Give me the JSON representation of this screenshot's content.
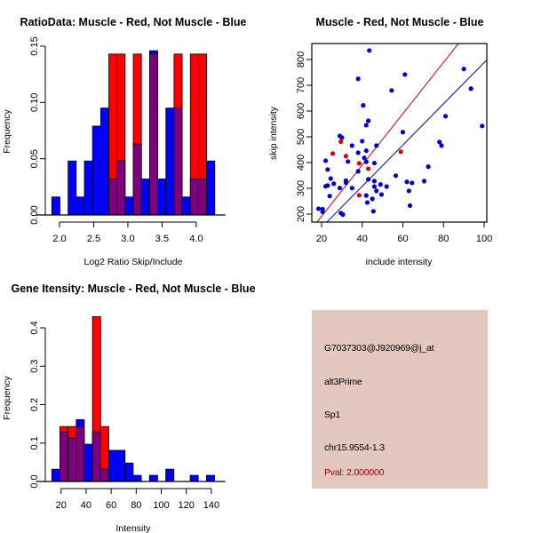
{
  "colors": {
    "red": "#ff0000",
    "blue": "#0000ff",
    "purple": "#7f007f",
    "scatter_blue": "#0000cc",
    "scatter_red": "#dd0000",
    "red_line": "#cc0000",
    "blue_line": "#000099",
    "panel_bg": "#e4c8c0",
    "pval": "#a00000"
  },
  "chart_data": [
    {
      "id": "ratio-hist",
      "type": "bar",
      "title": "RatioData: Muscle - Red, Not Muscle - Blue",
      "xlabel": "Log2 Ratio Skip/Include",
      "ylabel": "Frequency",
      "xlim": [
        1.887,
        4.27
      ],
      "ylim": [
        0,
        0.15
      ],
      "xticks": [
        "2.0",
        "2.5",
        "3.0",
        "3.5",
        "4.0"
      ],
      "xtick_values": [
        2.0,
        2.5,
        3.0,
        3.5,
        4.0
      ],
      "yticks": [
        "0.00",
        "0.05",
        "0.10",
        "0.15"
      ],
      "ytick_values": [
        0,
        0.05,
        0.1,
        0.15
      ],
      "bin_start": 1.887,
      "bin_width": 0.1192,
      "series": [
        {
          "name": "Not Muscle",
          "color": "blue",
          "values": [
            0.016,
            0,
            0.048,
            0.016,
            0.048,
            0.079,
            0.095,
            0.032,
            0.048,
            0.016,
            0.063,
            0.032,
            0.146,
            0.032,
            0.095,
            0.095,
            0.016,
            0.032,
            0.032,
            0.048
          ]
        },
        {
          "name": "Muscle",
          "color": "red",
          "values": [
            0,
            0,
            0,
            0,
            0,
            0,
            0,
            0.143,
            0.143,
            0,
            0.143,
            0,
            0.143,
            0,
            0,
            0.143,
            0,
            0.143,
            0.143,
            0
          ]
        }
      ],
      "overlap_color": "purple"
    },
    {
      "id": "intensity-scatter",
      "type": "scatter",
      "title": "Muscle - Red, Not Muscle - Blue",
      "xlabel": "include intensity",
      "ylabel": "skip intensity",
      "xlim": [
        15.2,
        101.3
      ],
      "ylim": [
        169,
        862
      ],
      "xticks": [
        "20",
        "40",
        "60",
        "80",
        "100"
      ],
      "xtick_values": [
        20,
        40,
        60,
        80,
        100
      ],
      "yticks": [
        "200",
        "300",
        "400",
        "500",
        "600",
        "700",
        "800"
      ],
      "ytick_values": [
        200,
        300,
        400,
        500,
        600,
        700,
        800
      ],
      "series": [
        {
          "name": "Not Muscle",
          "color": "scatter_blue",
          "points": [
            [
              43.5,
              835
            ],
            [
              38,
              725
            ],
            [
              61,
              742
            ],
            [
              54.5,
              680
            ],
            [
              40.5,
              622
            ],
            [
              90,
              763
            ],
            [
              93.5,
              687
            ],
            [
              81,
              580
            ],
            [
              99,
              542
            ],
            [
              43,
              562
            ],
            [
              42,
              545
            ],
            [
              60,
              518
            ],
            [
              29,
              503
            ],
            [
              30,
              497
            ],
            [
              40,
              483
            ],
            [
              78,
              480
            ],
            [
              79,
              466
            ],
            [
              35,
              466
            ],
            [
              47,
              466
            ],
            [
              42,
              446
            ],
            [
              38,
              438
            ],
            [
              41,
              418
            ],
            [
              22,
              407
            ],
            [
              33,
              404
            ],
            [
              42,
              403
            ],
            [
              46,
              398
            ],
            [
              23,
              373
            ],
            [
              72.5,
              384
            ],
            [
              38,
              366
            ],
            [
              56.5,
              349
            ],
            [
              24.5,
              338
            ],
            [
              43,
              335
            ],
            [
              32,
              330
            ],
            [
              46,
              328
            ],
            [
              70.5,
              328
            ],
            [
              32,
              322
            ],
            [
              62,
              325
            ],
            [
              64.5,
              321
            ],
            [
              26,
              318
            ],
            [
              23,
              311
            ],
            [
              22,
              308
            ],
            [
              49,
              315
            ],
            [
              46,
              307
            ],
            [
              52,
              307
            ],
            [
              35,
              301
            ],
            [
              29,
              301
            ],
            [
              47,
              290
            ],
            [
              63,
              290
            ],
            [
              49.5,
              276
            ],
            [
              24,
              270
            ],
            [
              42,
              272
            ],
            [
              45,
              259
            ],
            [
              42.5,
              245
            ],
            [
              63.5,
              233
            ],
            [
              18.5,
              221
            ],
            [
              20.5,
              219
            ],
            [
              20.5,
              209
            ],
            [
              45.5,
              211
            ],
            [
              29.5,
              204
            ],
            [
              30.5,
              198
            ]
          ]
        },
        {
          "name": "Muscle",
          "color": "scatter_red",
          "points": [
            [
              29.5,
              481
            ],
            [
              25.5,
              435
            ],
            [
              32,
              425
            ],
            [
              38.5,
              397
            ],
            [
              43,
              376
            ],
            [
              59,
              442
            ],
            [
              38.5,
              273
            ]
          ]
        }
      ],
      "lines": [
        {
          "name": "red-fit-line",
          "color": "red_line",
          "slope": 9.96,
          "intercept": -8
        },
        {
          "name": "blue-fit-line",
          "color": "blue_line",
          "slope": 8.0,
          "intercept": -12
        }
      ]
    },
    {
      "id": "gene-intensity-hist",
      "type": "bar",
      "title": "Gene Itensity: Muscle - Red, Not Muscle - Blue",
      "xlabel": "Intensity",
      "ylabel": "Frequency",
      "xlim": [
        12.6,
        142.7
      ],
      "ylim": [
        0,
        0.4
      ],
      "xticks": [
        "20",
        "40",
        "60",
        "80",
        "100",
        "120",
        "140"
      ],
      "xtick_values": [
        20,
        40,
        60,
        80,
        100,
        120,
        140
      ],
      "yticks": [
        "0.0",
        "0.1",
        "0.2",
        "0.3",
        "0.4"
      ],
      "ytick_values": [
        0,
        0.1,
        0.2,
        0.3,
        0.4
      ],
      "bin_start": 12.6,
      "bin_width": 6.5,
      "series": [
        {
          "name": "Not Muscle",
          "color": "blue",
          "values": [
            0.032,
            0.129,
            0.113,
            0.161,
            0.097,
            0.129,
            0.032,
            0.081,
            0.081,
            0.048,
            0.016,
            0,
            0.016,
            0,
            0.032,
            0,
            0,
            0.016,
            0,
            0.016
          ]
        },
        {
          "name": "Muscle",
          "color": "red",
          "values": [
            0,
            0.143,
            0.143,
            0.143,
            0,
            0.429,
            0.143,
            0,
            0,
            0,
            0,
            0,
            0,
            0,
            0,
            0,
            0,
            0,
            0,
            0
          ]
        }
      ],
      "overlap_color": "purple"
    }
  ],
  "info_panel": {
    "probe_id": "G7037303@J920969@j_at",
    "event_type": "alt3Prime",
    "gene": "Sp1",
    "location": "chr15.9554-1.3",
    "pval": "Pval: 2.000000"
  }
}
